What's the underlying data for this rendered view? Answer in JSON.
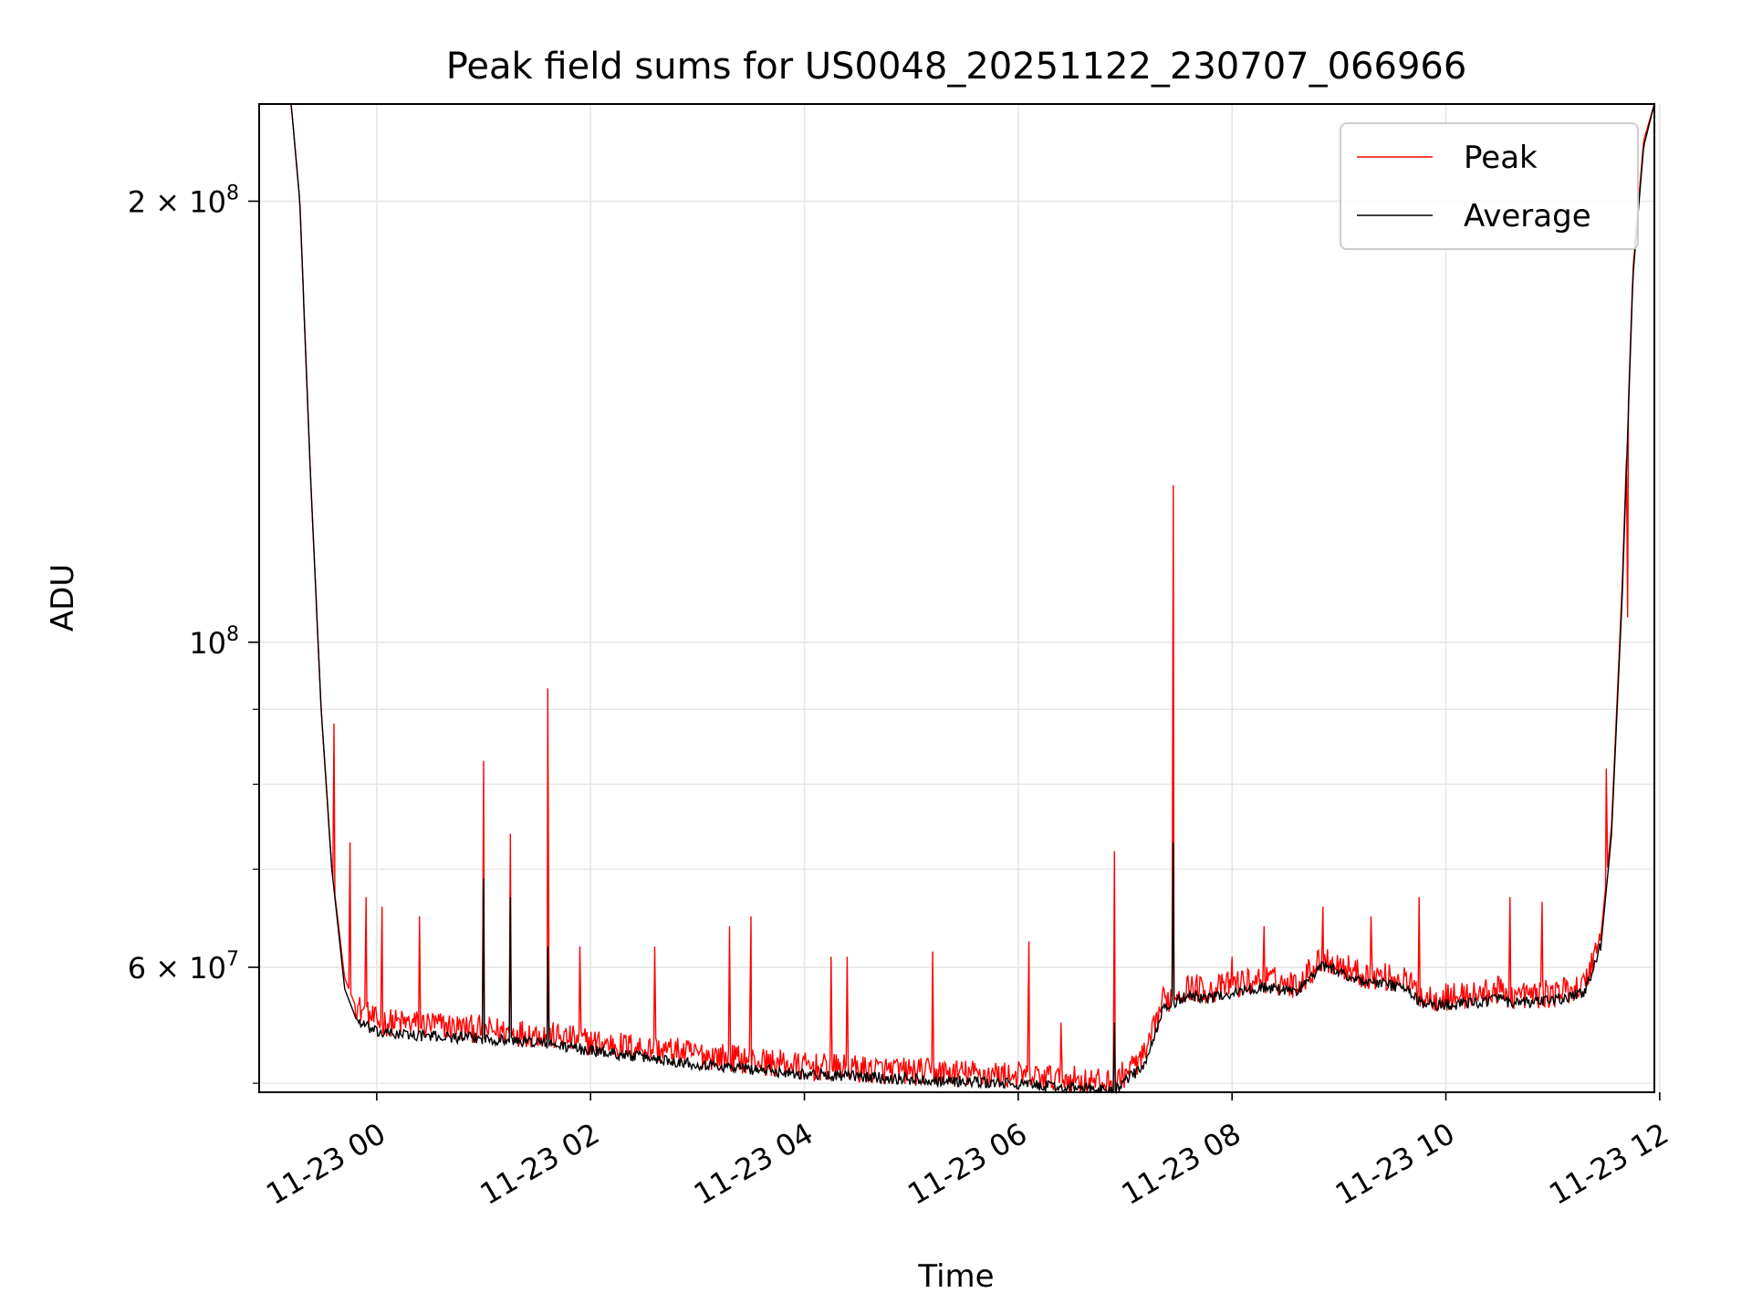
{
  "chart_data": {
    "type": "line",
    "title": "Peak field sums for US0048_20251122_230707_066966",
    "xlabel": "Time",
    "ylabel": "ADU",
    "yscale": "log",
    "grid": true,
    "legend_position": "upper right",
    "xlim_hours": [
      -1.1,
      11.95
    ],
    "ylim": [
      49300000,
      233000000
    ],
    "x_ticks": [
      {
        "hours": 0,
        "label": "11-23 00"
      },
      {
        "hours": 2,
        "label": "11-23 02"
      },
      {
        "hours": 4,
        "label": "11-23 04"
      },
      {
        "hours": 6,
        "label": "11-23 06"
      },
      {
        "hours": 8,
        "label": "11-23 08"
      },
      {
        "hours": 10,
        "label": "11-23 10"
      },
      {
        "hours": 12,
        "label": "11-23 12"
      }
    ],
    "y_major_ticks": [
      {
        "value": 100000000,
        "base": "10",
        "exp": "8",
        "mant": ""
      },
      {
        "value": 200000000,
        "base": "10",
        "exp": "8",
        "mant": "2 × "
      },
      {
        "value": 60000000,
        "base": "10",
        "exp": "7",
        "mant": "6 × "
      }
    ],
    "y_minor_ticks": [
      50000000,
      70000000,
      80000000,
      90000000
    ],
    "series": [
      {
        "name": "Peak",
        "color": "#ff0000",
        "base_points": [
          [
            -1.1,
            233000000
          ],
          [
            -0.8,
            233000000
          ],
          [
            -0.72,
            200000000
          ],
          [
            -0.62,
            130000000
          ],
          [
            -0.52,
            90000000
          ],
          [
            -0.42,
            70000000
          ],
          [
            -0.3,
            59000000
          ],
          [
            -0.18,
            56000000
          ],
          [
            0,
            54700000
          ],
          [
            0.5,
            54500000
          ],
          [
            1.0,
            54000000
          ],
          [
            1.5,
            53700000
          ],
          [
            2.0,
            53000000
          ],
          [
            3.0,
            52000000
          ],
          [
            4.0,
            51000000
          ],
          [
            5.0,
            50600000
          ],
          [
            6.0,
            50300000
          ],
          [
            6.5,
            50000000
          ],
          [
            6.9,
            49600000
          ],
          [
            7.0,
            50500000
          ],
          [
            7.2,
            52000000
          ],
          [
            7.35,
            56500000
          ],
          [
            7.6,
            57800000
          ],
          [
            7.8,
            57500000
          ],
          [
            8.0,
            58000000
          ],
          [
            8.3,
            58500000
          ],
          [
            8.6,
            58000000
          ],
          [
            8.85,
            60500000
          ],
          [
            9.2,
            59000000
          ],
          [
            9.6,
            58500000
          ],
          [
            9.8,
            56800000
          ],
          [
            10.2,
            57000000
          ],
          [
            10.5,
            57500000
          ],
          [
            10.6,
            57000000
          ],
          [
            11.0,
            57200000
          ],
          [
            11.3,
            58000000
          ],
          [
            11.45,
            63000000
          ],
          [
            11.55,
            75000000
          ],
          [
            11.65,
            110000000
          ],
          [
            11.75,
            180000000
          ],
          [
            11.85,
            220000000
          ],
          [
            11.95,
            233000000
          ]
        ],
        "spikes": [
          [
            -0.4,
            88000000
          ],
          [
            -0.25,
            73000000
          ],
          [
            -0.1,
            67000000
          ],
          [
            0.05,
            66000000
          ],
          [
            0.4,
            65000000
          ],
          [
            1.0,
            83000000
          ],
          [
            1.25,
            74000000
          ],
          [
            1.6,
            93000000
          ],
          [
            1.9,
            62000000
          ],
          [
            2.6,
            62000000
          ],
          [
            3.3,
            64000000
          ],
          [
            3.5,
            65000000
          ],
          [
            4.25,
            61000000
          ],
          [
            4.4,
            61000000
          ],
          [
            5.2,
            61500000
          ],
          [
            6.1,
            62500000
          ],
          [
            6.4,
            55000000
          ],
          [
            6.9,
            72000000
          ],
          [
            7.45,
            128000000
          ],
          [
            8.0,
            61000000
          ],
          [
            8.3,
            64000000
          ],
          [
            8.85,
            66000000
          ],
          [
            9.3,
            65000000
          ],
          [
            9.75,
            67000000
          ],
          [
            10.6,
            67000000
          ],
          [
            10.9,
            66500000
          ],
          [
            11.5,
            82000000
          ],
          [
            11.7,
            104000000
          ]
        ]
      },
      {
        "name": "Average",
        "color": "#000000",
        "base_points": [
          [
            -1.1,
            233000000
          ],
          [
            -0.8,
            233000000
          ],
          [
            -0.72,
            200000000
          ],
          [
            -0.62,
            130000000
          ],
          [
            -0.52,
            90000000
          ],
          [
            -0.42,
            70000000
          ],
          [
            -0.3,
            58000000
          ],
          [
            -0.18,
            55000000
          ],
          [
            0,
            54000000
          ],
          [
            0.5,
            53700000
          ],
          [
            1.0,
            53500000
          ],
          [
            1.5,
            53200000
          ],
          [
            2.0,
            52500000
          ],
          [
            3.0,
            51400000
          ],
          [
            4.0,
            50600000
          ],
          [
            5.0,
            50200000
          ],
          [
            6.0,
            49800000
          ],
          [
            6.5,
            49500000
          ],
          [
            6.9,
            49300000
          ],
          [
            7.0,
            50000000
          ],
          [
            7.2,
            51500000
          ],
          [
            7.35,
            56000000
          ],
          [
            7.6,
            57300000
          ],
          [
            7.8,
            57000000
          ],
          [
            8.0,
            57500000
          ],
          [
            8.3,
            58000000
          ],
          [
            8.6,
            57600000
          ],
          [
            8.85,
            60000000
          ],
          [
            9.2,
            58600000
          ],
          [
            9.6,
            58000000
          ],
          [
            9.8,
            56400000
          ],
          [
            10.2,
            56500000
          ],
          [
            10.5,
            57000000
          ],
          [
            10.6,
            56500000
          ],
          [
            11.0,
            56800000
          ],
          [
            11.3,
            57500000
          ],
          [
            11.45,
            62000000
          ],
          [
            11.55,
            74000000
          ],
          [
            11.65,
            108000000
          ],
          [
            11.75,
            178000000
          ],
          [
            11.85,
            218000000
          ],
          [
            11.95,
            233000000
          ]
        ],
        "spikes": [
          [
            1.0,
            69000000
          ],
          [
            1.25,
            67000000
          ],
          [
            1.6,
            62000000
          ],
          [
            6.9,
            55000000
          ],
          [
            7.45,
            73000000
          ]
        ]
      }
    ]
  }
}
